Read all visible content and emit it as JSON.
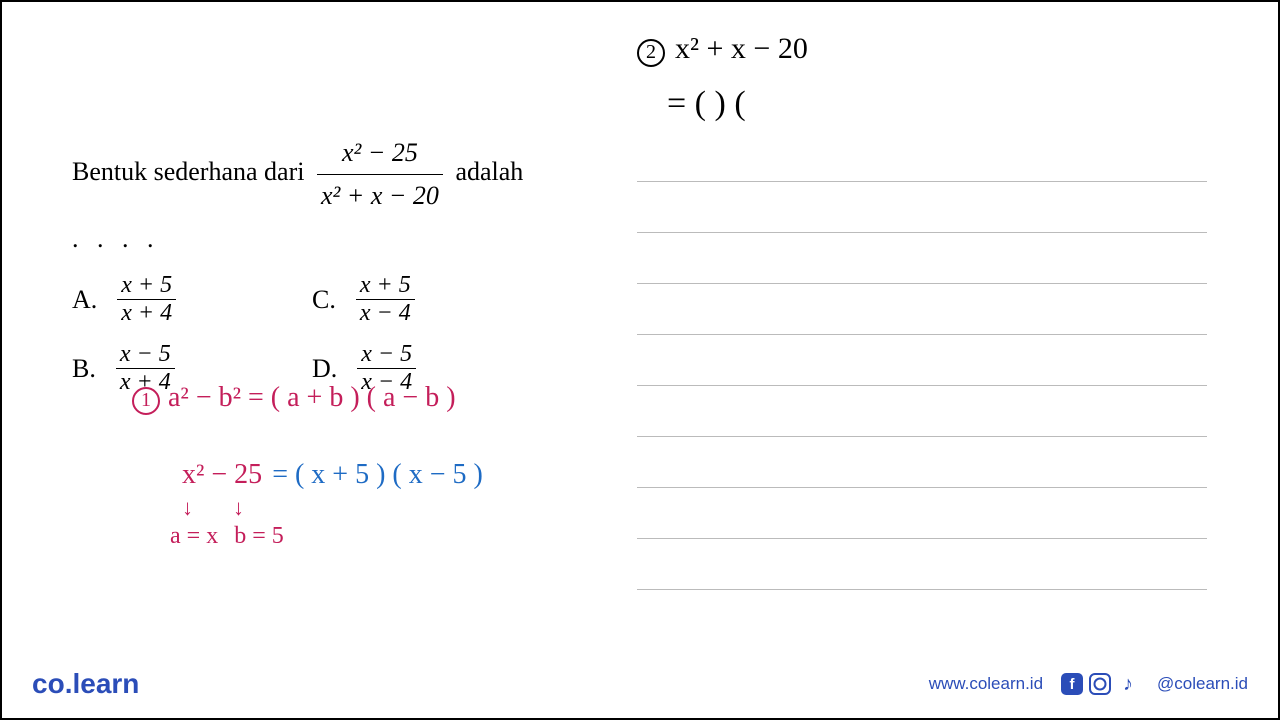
{
  "question": {
    "prefix": "Bentuk  sederhana  dari",
    "frac_num": "x² − 25",
    "frac_den": "x² + x − 20",
    "suffix": "adalah",
    "dots": ". . . ."
  },
  "options": {
    "A": {
      "label": "A.",
      "num": "x + 5",
      "den": "x + 4"
    },
    "B": {
      "label": "B.",
      "num": "x − 5",
      "den": "x + 4"
    },
    "C": {
      "label": "C.",
      "num": "x + 5",
      "den": "x − 4"
    },
    "D": {
      "label": "D.",
      "num": "x − 5",
      "den": "x − 4"
    }
  },
  "handwriting_left": {
    "step1_num": "1",
    "step1_formula": "a² − b²  =  ( a + b ) ( a − b )",
    "step2_left": "x² − 25",
    "step2_right": "= ( x + 5 ) ( x − 5 )",
    "arrow1": "↓",
    "arrow2": "↓",
    "sub1": "a = x",
    "sub2": "b = 5"
  },
  "handwriting_right": {
    "step2_num": "2",
    "step2_expr": "x² + x − 20",
    "step2_line2": "= (       ) ("
  },
  "footer": {
    "logo_co": "co",
    "logo_learn": "learn",
    "url": "www.colearn.id",
    "handle": "@colearn.id"
  },
  "colors": {
    "pink": "#c41e5a",
    "blue": "#1e6bc4",
    "brand": "#2b4db8",
    "rule": "#bbbbbb",
    "text": "#000000",
    "bg": "#ffffff"
  }
}
